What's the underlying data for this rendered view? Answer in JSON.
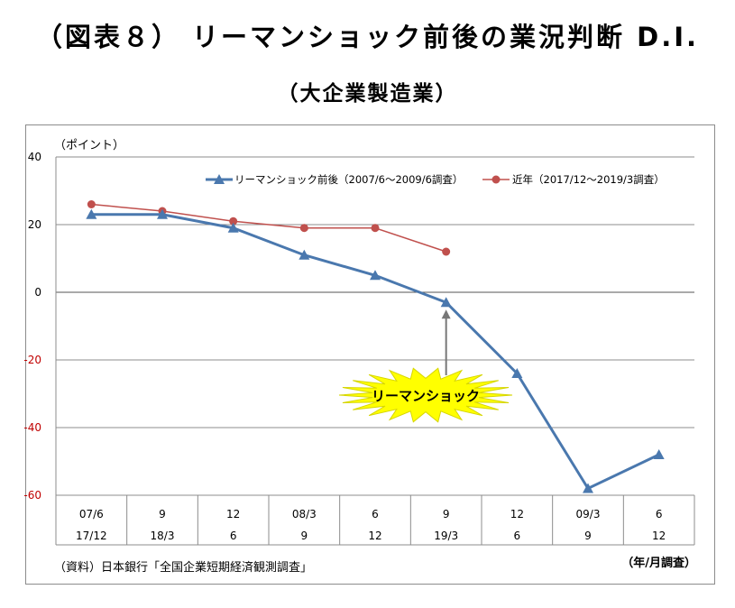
{
  "title": "（図表８） リーマンショック前後の業況判断 D.I.",
  "subtitle": "（大企業製造業）",
  "chart_data": {
    "type": "line",
    "ylabel": "（ポイント）",
    "xlabel": "（年/月調査）",
    "ylim": [
      -60,
      40
    ],
    "yticks": [
      40,
      20,
      0,
      -20,
      -40,
      -60
    ],
    "grid": true,
    "legend_position": "top-right",
    "categories_row1": [
      "07/6",
      "9",
      "12",
      "08/3",
      "6",
      "9",
      "12",
      "09/3",
      "6"
    ],
    "categories_row2": [
      "17/12",
      "18/3",
      "6",
      "9",
      "12",
      "19/3",
      "6",
      "9",
      "12"
    ],
    "series": [
      {
        "name": "リーマンショック前後（2007/6～2009/6調査）",
        "color": "#4a78ae",
        "marker": "triangle",
        "values": [
          23,
          23,
          19,
          11,
          5,
          -3,
          -24,
          -58,
          -48
        ]
      },
      {
        "name": "近年（2017/12～2019/3調査）",
        "color": "#c0504d",
        "marker": "circle",
        "values": [
          26,
          24,
          21,
          19,
          19,
          12,
          null,
          null,
          null
        ]
      }
    ],
    "annotation": {
      "text": "リーマンショック",
      "target_index": 5,
      "target_series": 0
    },
    "source": "（資料）日本銀行「全国企業短期経済観測調査」"
  }
}
